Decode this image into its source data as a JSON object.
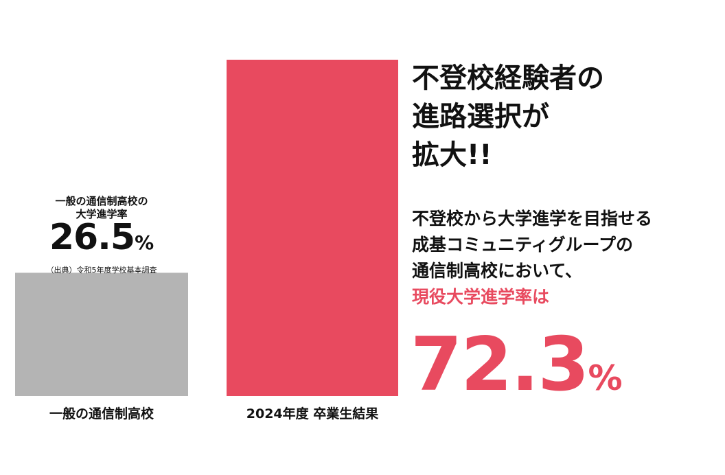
{
  "chart_data": {
    "type": "bar",
    "categories": [
      "一般の通信制高校",
      "2024年度 卒業生結果"
    ],
    "values": [
      26.5,
      72.3
    ],
    "unit": "%",
    "ylim": [
      0,
      72.3
    ],
    "colors": [
      "#b4b4b4",
      "#e84a5f"
    ],
    "grid": false
  },
  "left_annotation": {
    "heading_line1": "一般の通信制高校の",
    "heading_line2": "大学進学率",
    "value": "26.5",
    "unit": "%",
    "source": "（出典）令和5年度学校基本調査"
  },
  "headline": {
    "line1": "不登校経験者の",
    "line2": "進路選択が",
    "line3": "拡大!!"
  },
  "description": {
    "line1": "不登校から大学進学を目指せる",
    "line2": "成基コミュニティグループの",
    "line3": "通信制高校において、",
    "line4": "現役大学進学率は"
  },
  "big_value": {
    "value": "72.3",
    "unit": "%"
  },
  "accent_color": "#e84a5f"
}
